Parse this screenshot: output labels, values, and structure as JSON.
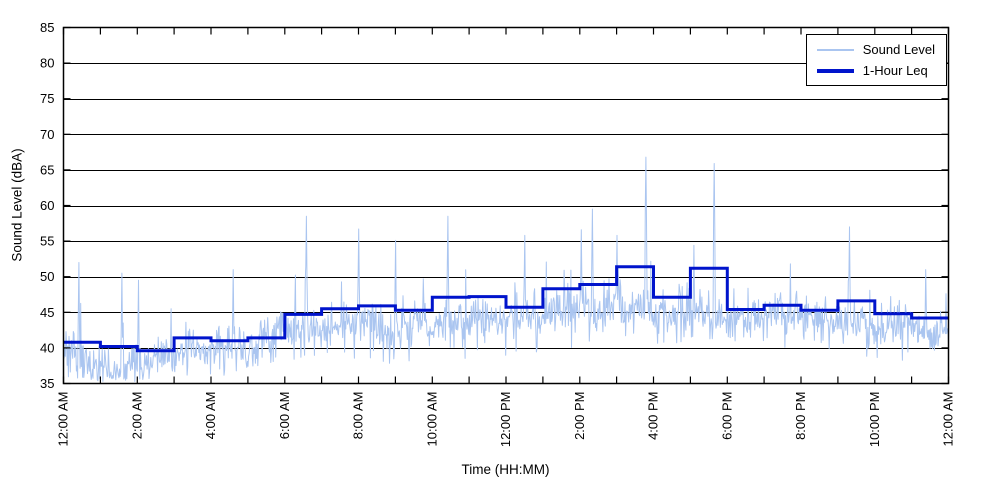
{
  "figure": {
    "background": "#ffffff"
  },
  "chart_data": {
    "type": "line",
    "title": "",
    "xlabel": "Time (HH:MM)",
    "ylabel": "Sound Level (dBA)",
    "x_axis": {
      "unit": "hours",
      "range_hours": [
        0,
        24
      ],
      "tick_every_hours": 1,
      "label_every_hours": 2,
      "tick_labels": [
        "12:00 AM",
        "2:00 AM",
        "4:00 AM",
        "6:00 AM",
        "8:00 AM",
        "10:00 AM",
        "12:00 PM",
        "2:00 PM",
        "4:00 PM",
        "6:00 PM",
        "8:00 PM",
        "10:00 PM",
        "12:00 AM"
      ]
    },
    "y_axis": {
      "range": [
        35,
        85
      ],
      "tick_step": 5,
      "tick_labels": [
        "35",
        "40",
        "45",
        "50",
        "55",
        "60",
        "65",
        "70",
        "75",
        "80",
        "85"
      ]
    },
    "grid": {
      "horizontal": true,
      "vertical": false,
      "color": "#000000"
    },
    "legend": {
      "position": "top-right",
      "border_color": "#000000",
      "background": "#ffffff"
    },
    "series": [
      {
        "name": "Sound Level",
        "type": "noisy-line",
        "color": "#aac5f0",
        "sample_minutes": 1,
        "hourly_profile": [
          {
            "hour": "12 AM",
            "lo": 36.0,
            "med": 38.8,
            "hi": 48.0
          },
          {
            "hour": "1 AM",
            "lo": 35.3,
            "med": 38.0,
            "hi": 46.5
          },
          {
            "hour": "2 AM",
            "lo": 35.2,
            "med": 37.6,
            "hi": 46.0
          },
          {
            "hour": "3 AM",
            "lo": 36.0,
            "med": 39.2,
            "hi": 47.0
          },
          {
            "hour": "4 AM",
            "lo": 36.0,
            "med": 39.4,
            "hi": 48.0
          },
          {
            "hour": "5 AM",
            "lo": 36.4,
            "med": 39.8,
            "hi": 47.5
          },
          {
            "hour": "6 AM",
            "lo": 38.0,
            "med": 42.5,
            "hi": 53.0
          },
          {
            "hour": "7 AM",
            "lo": 39.0,
            "med": 43.5,
            "hi": 54.0
          },
          {
            "hour": "8 AM",
            "lo": 38.5,
            "med": 43.6,
            "hi": 55.0
          },
          {
            "hour": "9 AM",
            "lo": 37.5,
            "med": 43.0,
            "hi": 53.0
          },
          {
            "hour": "10 AM",
            "lo": 38.5,
            "med": 44.0,
            "hi": 55.0
          },
          {
            "hour": "11 AM",
            "lo": 38.5,
            "med": 44.4,
            "hi": 53.5
          },
          {
            "hour": "12 PM",
            "lo": 38.5,
            "med": 43.8,
            "hi": 54.0
          },
          {
            "hour": "1 PM",
            "lo": 39.5,
            "med": 45.0,
            "hi": 55.0
          },
          {
            "hour": "2 PM",
            "lo": 40.0,
            "med": 45.5,
            "hi": 56.0
          },
          {
            "hour": "3 PM",
            "lo": 41.0,
            "med": 46.3,
            "hi": 56.0
          },
          {
            "hour": "4 PM",
            "lo": 40.0,
            "med": 44.8,
            "hi": 53.5
          },
          {
            "hour": "5 PM",
            "lo": 41.0,
            "med": 46.0,
            "hi": 55.0
          },
          {
            "hour": "6 PM",
            "lo": 40.5,
            "med": 44.0,
            "hi": 51.5
          },
          {
            "hour": "7 PM",
            "lo": 40.0,
            "med": 44.2,
            "hi": 52.5
          },
          {
            "hour": "8 PM",
            "lo": 40.0,
            "med": 44.0,
            "hi": 53.5
          },
          {
            "hour": "9 PM",
            "lo": 39.5,
            "med": 43.8,
            "hi": 53.0
          },
          {
            "hour": "10 PM",
            "lo": 38.5,
            "med": 43.0,
            "hi": 50.5
          },
          {
            "hour": "11 PM",
            "lo": 37.8,
            "med": 42.2,
            "hi": 50.0
          }
        ],
        "spikes": [
          {
            "time": "00:25",
            "dba": 52.0
          },
          {
            "time": "01:35",
            "dba": 50.5
          },
          {
            "time": "02:02",
            "dba": 49.5
          },
          {
            "time": "04:36",
            "dba": 51.0
          },
          {
            "time": "06:35",
            "dba": 58.5
          },
          {
            "time": "08:00",
            "dba": 56.7
          },
          {
            "time": "09:00",
            "dba": 55.1
          },
          {
            "time": "10:25",
            "dba": 58.5
          },
          {
            "time": "12:30",
            "dba": 55.8
          },
          {
            "time": "14:02",
            "dba": 56.6
          },
          {
            "time": "14:20",
            "dba": 59.5
          },
          {
            "time": "15:00",
            "dba": 55.8
          },
          {
            "time": "15:47",
            "dba": 66.8
          },
          {
            "time": "17:05",
            "dba": 54.4
          },
          {
            "time": "17:38",
            "dba": 65.9
          },
          {
            "time": "19:42",
            "dba": 51.8
          },
          {
            "time": "21:18",
            "dba": 57.0
          },
          {
            "time": "23:22",
            "dba": 51.0
          }
        ]
      },
      {
        "name": "1-Hour Leq",
        "type": "step",
        "color": "#0014cc",
        "hourly_leq": [
          40.8,
          40.2,
          39.6,
          41.4,
          41.0,
          41.4,
          44.7,
          45.5,
          45.9,
          45.3,
          47.1,
          47.2,
          45.7,
          48.3,
          48.9,
          51.4,
          47.1,
          51.2,
          45.4,
          46.0,
          45.3,
          46.6,
          44.8,
          44.2
        ]
      }
    ]
  }
}
